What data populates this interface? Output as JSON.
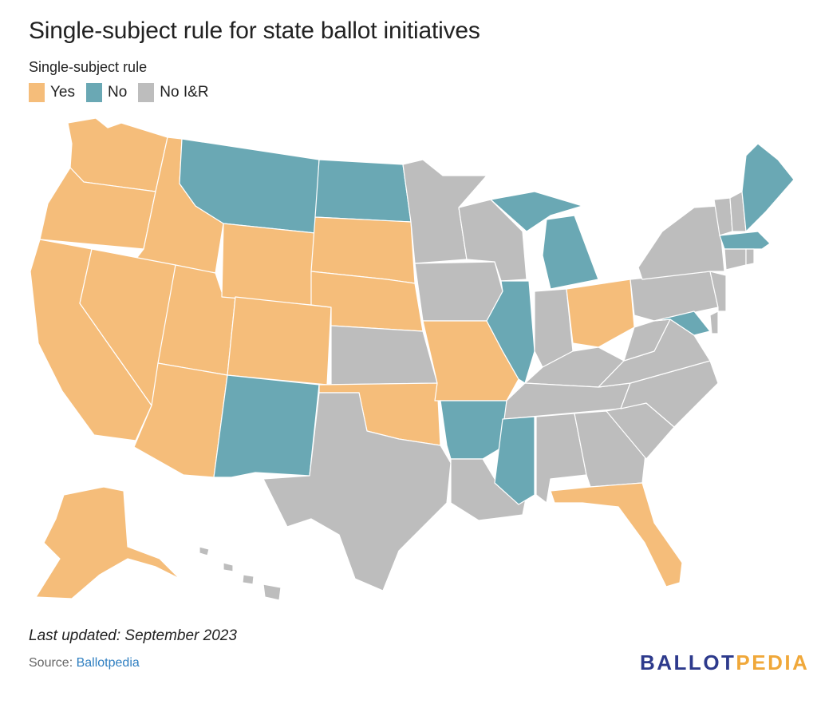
{
  "title": "Single-subject rule for state ballot initiatives",
  "legend": {
    "title": "Single-subject rule",
    "items": [
      {
        "label": "Yes",
        "color": "#f5bd7a"
      },
      {
        "label": "No",
        "color": "#6aa8b4"
      },
      {
        "label": "No I&R",
        "color": "#bdbdbd"
      }
    ]
  },
  "footer": {
    "updated": "Last updated: September 2023",
    "source_prefix": "Source: ",
    "source_link": "Ballotpedia",
    "brand_a": "BALLOT",
    "brand_b": "PEDIA"
  },
  "map_data": {
    "type": "choropleth",
    "region": "United States",
    "categories": {
      "yes": "Yes",
      "no": "No",
      "none": "No I&R"
    },
    "states": {
      "WA": "yes",
      "OR": "yes",
      "CA": "yes",
      "ID": "yes",
      "NV": "yes",
      "UT": "yes",
      "AZ": "yes",
      "WY": "yes",
      "CO": "yes",
      "SD": "yes",
      "NE": "yes",
      "OK": "yes",
      "MO": "yes",
      "OH": "yes",
      "FL": "yes",
      "AK": "yes",
      "MT": "no",
      "ND": "no",
      "NM": "no",
      "AR": "no",
      "MS": "no",
      "IL": "no",
      "MI": "no",
      "MA": "no",
      "ME": "no",
      "MD": "no",
      "MN": "none",
      "WI": "none",
      "IA": "none",
      "KS": "none",
      "TX": "none",
      "LA": "none",
      "AL": "none",
      "GA": "none",
      "SC": "none",
      "NC": "none",
      "TN": "none",
      "KY": "none",
      "IN": "none",
      "WV": "none",
      "VA": "none",
      "PA": "none",
      "NY": "none",
      "NJ": "none",
      "DE": "none",
      "CT": "none",
      "RI": "none",
      "VT": "none",
      "NH": "none",
      "HI": "none"
    }
  }
}
